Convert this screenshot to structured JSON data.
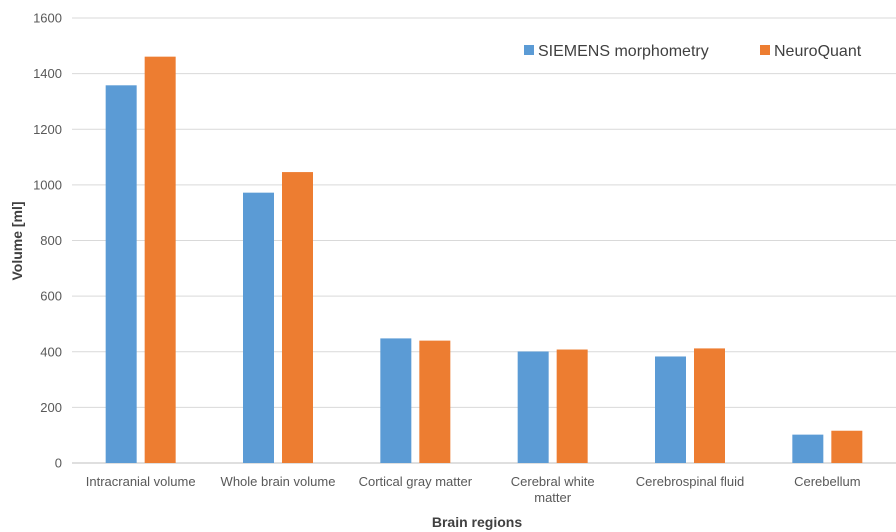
{
  "chart_data": {
    "type": "bar",
    "title": "",
    "xlabel": "Brain regions",
    "ylabel": "Volume [ml]",
    "ylim": [
      0,
      1600
    ],
    "yticks": [
      0,
      200,
      400,
      600,
      800,
      1000,
      1200,
      1400,
      1600
    ],
    "grid": true,
    "legend_position": "top-right",
    "categories": [
      [
        "Intracranial volume"
      ],
      [
        "Whole brain volume"
      ],
      [
        "Cortical gray matter"
      ],
      [
        "Cerebral white",
        "matter"
      ],
      [
        "Cerebrospinal fluid"
      ],
      [
        "Cerebellum"
      ]
    ],
    "series": [
      {
        "name": "SIEMENS morphometry",
        "color": "#5b9bd5",
        "values": [
          1358,
          972,
          448,
          401,
          383,
          102
        ]
      },
      {
        "name": "NeuroQuant",
        "color": "#ed7d31",
        "values": [
          1461,
          1046,
          440,
          408,
          412,
          116
        ]
      }
    ]
  }
}
